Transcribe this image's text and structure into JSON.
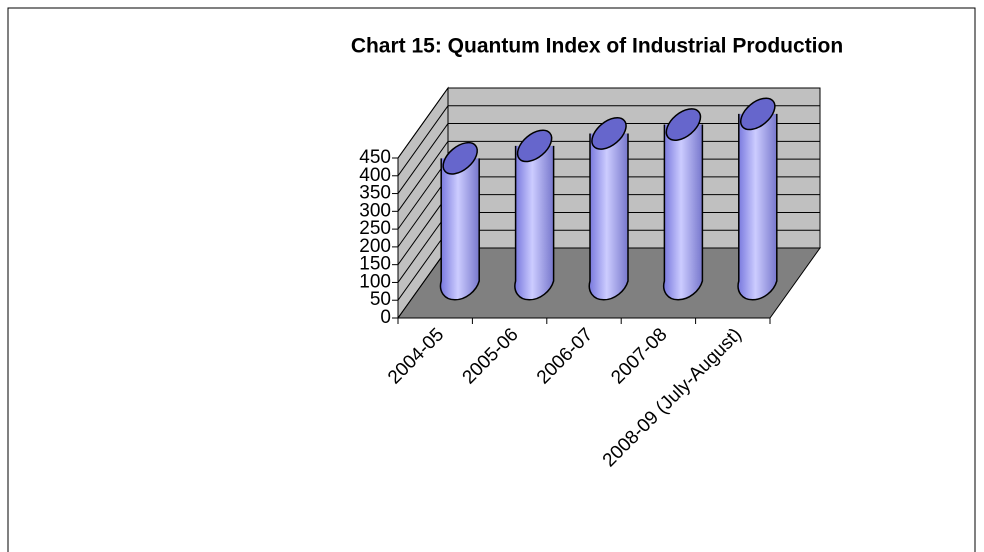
{
  "chart_data": {
    "type": "bar3d",
    "title": "Chart 15: Quantum Index of Industrial Production",
    "categories": [
      "2004-05",
      "2005-06",
      "2006-07",
      "2007-08",
      "2008-09 (July-August)"
    ],
    "values": [
      345,
      380,
      415,
      440,
      470
    ],
    "color": "#9999ff",
    "ylim": [
      0,
      450
    ],
    "yticks": [
      0,
      50,
      100,
      150,
      200,
      250,
      300,
      350,
      400,
      450
    ],
    "grid": true
  }
}
